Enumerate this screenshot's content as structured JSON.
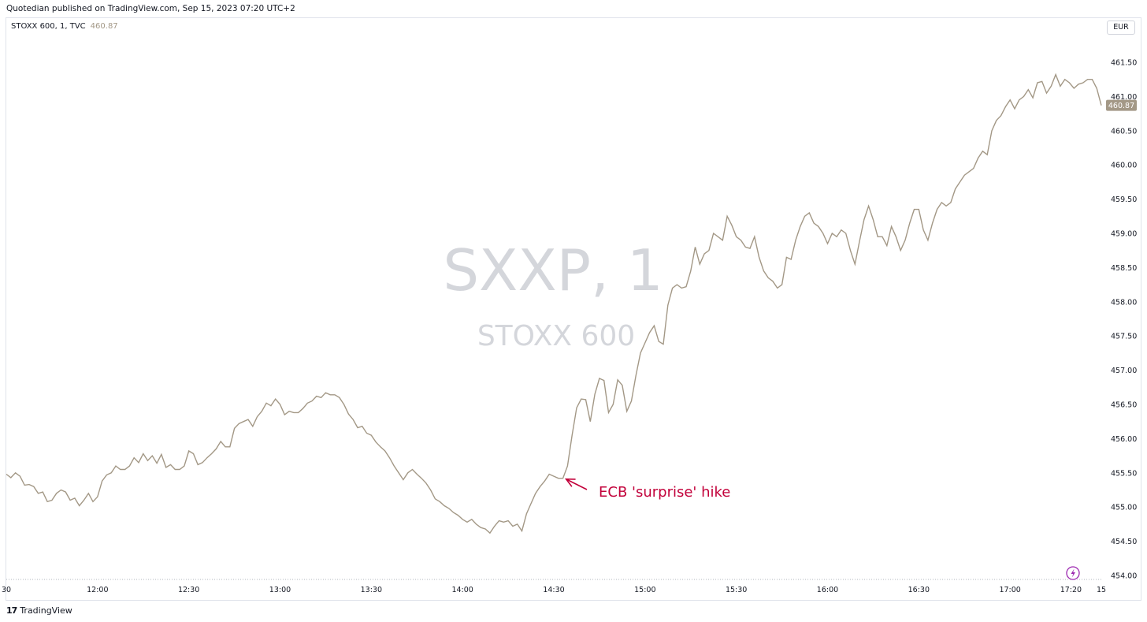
{
  "header": {
    "published": "Quotedian published on TradingView.com, Sep 15, 2023 07:20 UTC+2"
  },
  "legend": {
    "symbol": "STOXX 600, 1, TVC",
    "last_value": "460.87"
  },
  "currency": "EUR",
  "watermark": {
    "symbol": "SXXP, 1",
    "name": "STOXX 600"
  },
  "footer": {
    "brand": "TradingView",
    "mark": "17"
  },
  "colors": {
    "line": "#a39886",
    "annotation": "#c2003a",
    "price_label_bg": "#a39886",
    "lightning": "#9c27b0"
  },
  "chart_data": {
    "type": "line",
    "ylim": [
      454.0,
      461.75
    ],
    "ylabel": "",
    "xlabel": "",
    "y_ticks": [
      "461.50",
      "461.00",
      "460.50",
      "460.00",
      "459.50",
      "459.00",
      "458.50",
      "458.00",
      "457.50",
      "457.00",
      "456.50",
      "456.00",
      "455.50",
      "455.00",
      "454.50",
      "454.00"
    ],
    "x_ticks": [
      {
        "label": "30",
        "minute": 690
      },
      {
        "label": "12:00",
        "minute": 720
      },
      {
        "label": "12:30",
        "minute": 750
      },
      {
        "label": "13:00",
        "minute": 780
      },
      {
        "label": "13:30",
        "minute": 810
      },
      {
        "label": "14:00",
        "minute": 840
      },
      {
        "label": "14:30",
        "minute": 870
      },
      {
        "label": "15:00",
        "minute": 900
      },
      {
        "label": "15:30",
        "minute": 930
      },
      {
        "label": "16:00",
        "minute": 960
      },
      {
        "label": "16:30",
        "minute": 990
      },
      {
        "label": "17:00",
        "minute": 1020
      },
      {
        "label": "17:20",
        "minute": 1040
      },
      {
        "label": "15",
        "minute": 1050
      }
    ],
    "x_range_minutes": [
      690,
      1050
    ],
    "last_price": 460.87,
    "series": [
      {
        "values": [
          [
            690.0,
            455.48
          ],
          [
            691.5,
            455.43
          ],
          [
            693.0,
            455.5
          ],
          [
            694.5,
            455.45
          ],
          [
            696.0,
            455.32
          ],
          [
            697.5,
            455.33
          ],
          [
            699.0,
            455.3
          ],
          [
            700.5,
            455.2
          ],
          [
            702.0,
            455.22
          ],
          [
            703.5,
            455.08
          ],
          [
            705.0,
            455.1
          ],
          [
            706.5,
            455.2
          ],
          [
            708.0,
            455.25
          ],
          [
            709.5,
            455.22
          ],
          [
            711.0,
            455.1
          ],
          [
            712.5,
            455.13
          ],
          [
            714.0,
            455.02
          ],
          [
            715.5,
            455.1
          ],
          [
            717.0,
            455.2
          ],
          [
            718.5,
            455.08
          ],
          [
            720.0,
            455.15
          ],
          [
            721.5,
            455.38
          ],
          [
            723.0,
            455.47
          ],
          [
            724.5,
            455.5
          ],
          [
            726.0,
            455.6
          ],
          [
            727.5,
            455.55
          ],
          [
            729.0,
            455.55
          ],
          [
            730.5,
            455.6
          ],
          [
            732.0,
            455.72
          ],
          [
            733.5,
            455.65
          ],
          [
            735.0,
            455.78
          ],
          [
            736.5,
            455.68
          ],
          [
            738.0,
            455.75
          ],
          [
            739.5,
            455.64
          ],
          [
            741.0,
            455.77
          ],
          [
            742.5,
            455.58
          ],
          [
            744.0,
            455.62
          ],
          [
            745.5,
            455.55
          ],
          [
            747.0,
            455.55
          ],
          [
            748.5,
            455.6
          ],
          [
            750.0,
            455.82
          ],
          [
            751.5,
            455.78
          ],
          [
            753.0,
            455.62
          ],
          [
            754.5,
            455.65
          ],
          [
            756.0,
            455.72
          ],
          [
            757.5,
            455.78
          ],
          [
            759.0,
            455.85
          ],
          [
            760.5,
            455.96
          ],
          [
            762.0,
            455.88
          ],
          [
            763.5,
            455.88
          ],
          [
            765.0,
            456.15
          ],
          [
            766.5,
            456.22
          ],
          [
            768.0,
            456.25
          ],
          [
            769.5,
            456.28
          ],
          [
            771.0,
            456.18
          ],
          [
            772.5,
            456.32
          ],
          [
            774.0,
            456.4
          ],
          [
            775.5,
            456.52
          ],
          [
            777.0,
            456.48
          ],
          [
            778.5,
            456.58
          ],
          [
            780.0,
            456.5
          ],
          [
            781.5,
            456.35
          ],
          [
            783.0,
            456.4
          ],
          [
            784.5,
            456.38
          ],
          [
            786.0,
            456.38
          ],
          [
            787.5,
            456.44
          ],
          [
            789.0,
            456.52
          ],
          [
            790.5,
            456.55
          ],
          [
            792.0,
            456.62
          ],
          [
            793.5,
            456.6
          ],
          [
            795.0,
            456.67
          ],
          [
            796.5,
            456.64
          ],
          [
            798.0,
            456.64
          ],
          [
            799.5,
            456.6
          ],
          [
            801.0,
            456.5
          ],
          [
            802.5,
            456.36
          ],
          [
            804.0,
            456.28
          ],
          [
            805.5,
            456.16
          ],
          [
            807.0,
            456.18
          ],
          [
            808.5,
            456.08
          ],
          [
            810.0,
            456.05
          ],
          [
            811.5,
            455.95
          ],
          [
            813.0,
            455.88
          ],
          [
            814.5,
            455.82
          ],
          [
            816.0,
            455.72
          ],
          [
            817.5,
            455.6
          ],
          [
            819.0,
            455.5
          ],
          [
            820.5,
            455.4
          ],
          [
            822.0,
            455.5
          ],
          [
            823.5,
            455.55
          ],
          [
            825.0,
            455.48
          ],
          [
            826.5,
            455.42
          ],
          [
            828.0,
            455.35
          ],
          [
            829.5,
            455.25
          ],
          [
            831.0,
            455.12
          ],
          [
            832.5,
            455.08
          ],
          [
            834.0,
            455.02
          ],
          [
            835.5,
            454.98
          ],
          [
            837.0,
            454.92
          ],
          [
            838.5,
            454.88
          ],
          [
            840.0,
            454.82
          ],
          [
            841.5,
            454.78
          ],
          [
            843.0,
            454.82
          ],
          [
            844.5,
            454.75
          ],
          [
            846.0,
            454.7
          ],
          [
            847.5,
            454.68
          ],
          [
            849.0,
            454.62
          ],
          [
            850.5,
            454.72
          ],
          [
            852.0,
            454.8
          ],
          [
            853.5,
            454.78
          ],
          [
            855.0,
            454.8
          ],
          [
            856.5,
            454.72
          ],
          [
            858.0,
            454.75
          ],
          [
            859.5,
            454.65
          ],
          [
            861.0,
            454.9
          ],
          [
            862.5,
            455.05
          ],
          [
            864.0,
            455.2
          ],
          [
            865.5,
            455.3
          ],
          [
            867.0,
            455.38
          ],
          [
            868.5,
            455.48
          ],
          [
            870.0,
            455.45
          ],
          [
            871.5,
            455.42
          ],
          [
            873.0,
            455.42
          ],
          [
            874.5,
            455.6
          ],
          [
            876.0,
            456.05
          ],
          [
            877.5,
            456.45
          ],
          [
            879.0,
            456.58
          ],
          [
            880.5,
            456.57
          ],
          [
            882.0,
            456.25
          ],
          [
            883.5,
            456.65
          ],
          [
            885.0,
            456.88
          ],
          [
            886.5,
            456.85
          ],
          [
            888.0,
            456.38
          ],
          [
            889.5,
            456.5
          ],
          [
            891.0,
            456.86
          ],
          [
            892.5,
            456.78
          ],
          [
            894.0,
            456.4
          ],
          [
            895.5,
            456.55
          ],
          [
            897.0,
            456.92
          ],
          [
            898.5,
            457.25
          ],
          [
            900.0,
            457.4
          ],
          [
            901.5,
            457.55
          ],
          [
            903.0,
            457.65
          ],
          [
            904.5,
            457.42
          ],
          [
            906.0,
            457.38
          ],
          [
            907.5,
            457.95
          ],
          [
            909.0,
            458.2
          ],
          [
            910.5,
            458.25
          ],
          [
            912.0,
            458.2
          ],
          [
            913.5,
            458.22
          ],
          [
            915.0,
            458.45
          ],
          [
            916.5,
            458.8
          ],
          [
            918.0,
            458.55
          ],
          [
            919.5,
            458.7
          ],
          [
            921.0,
            458.75
          ],
          [
            922.5,
            459.0
          ],
          [
            924.0,
            458.95
          ],
          [
            925.5,
            458.9
          ],
          [
            927.0,
            459.25
          ],
          [
            928.5,
            459.12
          ],
          [
            930.0,
            458.95
          ],
          [
            931.5,
            458.9
          ],
          [
            933.0,
            458.8
          ],
          [
            934.5,
            458.78
          ],
          [
            936.0,
            458.95
          ],
          [
            937.5,
            458.65
          ],
          [
            939.0,
            458.45
          ],
          [
            940.5,
            458.35
          ],
          [
            942.0,
            458.3
          ],
          [
            943.5,
            458.2
          ],
          [
            945.0,
            458.25
          ],
          [
            946.5,
            458.65
          ],
          [
            948.0,
            458.62
          ],
          [
            949.5,
            458.9
          ],
          [
            951.0,
            459.1
          ],
          [
            952.5,
            459.25
          ],
          [
            954.0,
            459.3
          ],
          [
            955.5,
            459.15
          ],
          [
            957.0,
            459.1
          ],
          [
            958.5,
            459.0
          ],
          [
            960.0,
            458.85
          ],
          [
            961.5,
            459.0
          ],
          [
            963.0,
            458.95
          ],
          [
            964.5,
            459.05
          ],
          [
            966.0,
            459.0
          ],
          [
            967.5,
            458.75
          ],
          [
            969.0,
            458.55
          ],
          [
            970.5,
            458.88
          ],
          [
            972.0,
            459.2
          ],
          [
            973.5,
            459.4
          ],
          [
            975.0,
            459.2
          ],
          [
            976.5,
            458.95
          ],
          [
            978.0,
            458.95
          ],
          [
            979.5,
            458.82
          ],
          [
            981.0,
            459.1
          ],
          [
            982.5,
            458.95
          ],
          [
            984.0,
            458.75
          ],
          [
            985.5,
            458.9
          ],
          [
            987.0,
            459.15
          ],
          [
            988.5,
            459.35
          ],
          [
            990.0,
            459.35
          ],
          [
            991.5,
            459.05
          ],
          [
            993.0,
            458.9
          ],
          [
            994.5,
            459.15
          ],
          [
            996.0,
            459.35
          ],
          [
            997.5,
            459.45
          ],
          [
            999.0,
            459.4
          ],
          [
            1000.5,
            459.45
          ],
          [
            1002.0,
            459.65
          ],
          [
            1003.5,
            459.75
          ],
          [
            1005.0,
            459.85
          ],
          [
            1006.5,
            459.9
          ],
          [
            1008.0,
            459.95
          ],
          [
            1009.5,
            460.1
          ],
          [
            1011.0,
            460.2
          ],
          [
            1012.5,
            460.15
          ],
          [
            1014.0,
            460.5
          ],
          [
            1015.5,
            460.65
          ],
          [
            1017.0,
            460.72
          ],
          [
            1018.5,
            460.85
          ],
          [
            1020.0,
            460.95
          ],
          [
            1021.5,
            460.82
          ],
          [
            1023.0,
            460.95
          ],
          [
            1024.5,
            461.0
          ],
          [
            1026.0,
            461.1
          ],
          [
            1027.5,
            460.98
          ],
          [
            1029.0,
            461.2
          ],
          [
            1030.5,
            461.22
          ],
          [
            1032.0,
            461.05
          ],
          [
            1033.5,
            461.15
          ],
          [
            1035.0,
            461.32
          ],
          [
            1036.5,
            461.15
          ],
          [
            1038.0,
            461.25
          ],
          [
            1039.5,
            461.2
          ],
          [
            1041.0,
            461.12
          ],
          [
            1042.5,
            461.18
          ],
          [
            1044.0,
            461.2
          ],
          [
            1045.5,
            461.25
          ],
          [
            1047.0,
            461.25
          ],
          [
            1048.5,
            461.12
          ],
          [
            1050.0,
            460.87
          ]
        ]
      }
    ],
    "annotations": [
      {
        "text": "ECB 'surprise' hike",
        "target_minute": 873.0,
        "target_price": 455.42
      }
    ]
  }
}
